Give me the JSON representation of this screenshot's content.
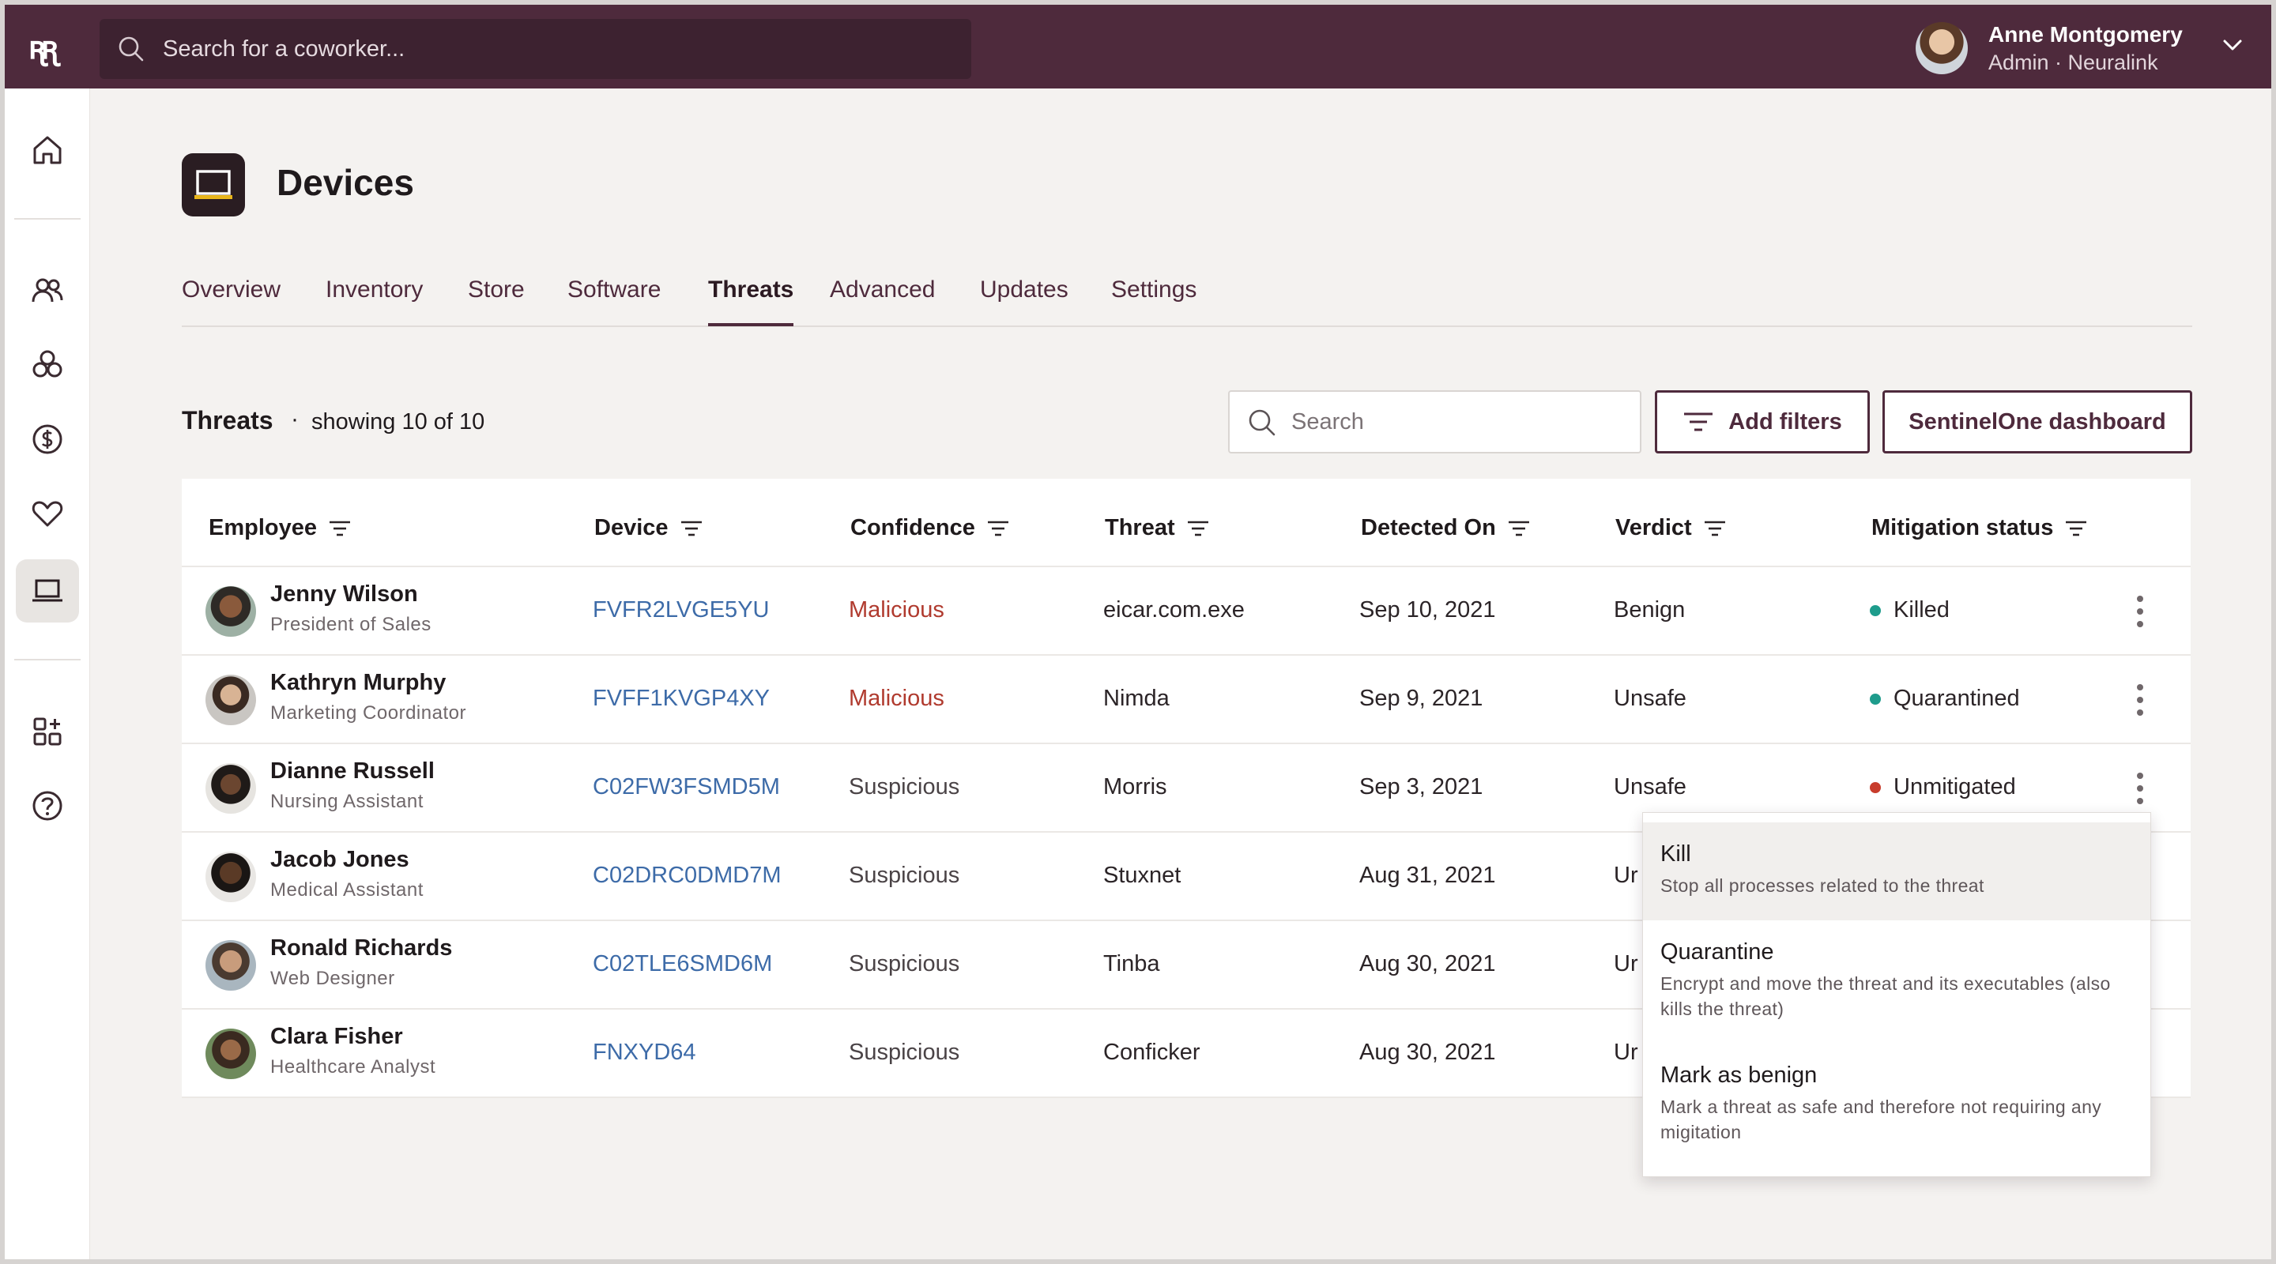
{
  "topbar": {
    "logo_text": "ꭆꭆ",
    "search_placeholder": "Search for a coworker...",
    "user": {
      "name": "Anne Montgomery",
      "role": "Admin · Neuralink"
    }
  },
  "sidebar": {
    "items": [
      "home-icon",
      "people-icon",
      "apps-cluster-icon",
      "dollar-icon",
      "heart-icon",
      "laptop-icon",
      "add-apps-icon",
      "help-icon"
    ],
    "active": "laptop-icon"
  },
  "page": {
    "title": "Devices"
  },
  "tabs": [
    {
      "label": "Overview",
      "active": false
    },
    {
      "label": "Inventory",
      "active": false
    },
    {
      "label": "Store",
      "active": false
    },
    {
      "label": "Software",
      "active": false
    },
    {
      "label": "Threats",
      "active": true
    },
    {
      "label": "Advanced",
      "active": false
    },
    {
      "label": "Updates",
      "active": false
    },
    {
      "label": "Settings",
      "active": false
    }
  ],
  "section": {
    "title": "Threats",
    "separator": "·",
    "count_text": "showing 10 of 10",
    "search_placeholder": "Search",
    "add_filters_label": "Add filters",
    "dashboard_label": "SentinelOne dashboard"
  },
  "table": {
    "columns": [
      "Employee",
      "Device",
      "Confidence",
      "Threat",
      "Detected On",
      "Verdict",
      "Mitigation status"
    ],
    "rows": [
      {
        "name": "Jenny Wilson",
        "role": "President of Sales",
        "device": "FVFR2LVGE5YU",
        "confidence": "Malicious",
        "threat": "eicar.com.exe",
        "detected": "Sep 10, 2021",
        "verdict": "Benign",
        "status": "Killed",
        "status_color": "#1e9c8c"
      },
      {
        "name": "Kathryn Murphy",
        "role": "Marketing Coordinator",
        "device": "FVFF1KVGP4XY",
        "confidence": "Malicious",
        "threat": "Nimda",
        "detected": "Sep 9, 2021",
        "verdict": "Unsafe",
        "status": "Quarantined",
        "status_color": "#1e9c8c"
      },
      {
        "name": "Dianne Russell",
        "role": "Nursing Assistant",
        "device": "C02FW3FSMD5M",
        "confidence": "Suspicious",
        "threat": "Morris",
        "detected": "Sep 3, 2021",
        "verdict": "Unsafe",
        "status": "Unmitigated",
        "status_color": "#c83c2c"
      },
      {
        "name": "Jacob Jones",
        "role": "Medical Assistant",
        "device": "C02DRC0DMD7M",
        "confidence": "Suspicious",
        "threat": "Stuxnet",
        "detected": "Aug 31, 2021",
        "verdict": "Ur",
        "status": "",
        "status_color": ""
      },
      {
        "name": "Ronald Richards",
        "role": "Web Designer",
        "device": "C02TLE6SMD6M",
        "confidence": "Suspicious",
        "threat": "Tinba",
        "detected": "Aug 30, 2021",
        "verdict": "Ur",
        "status": "",
        "status_color": ""
      },
      {
        "name": "Clara Fisher",
        "role": "Healthcare Analyst",
        "device": "FNXYD64",
        "confidence": "Suspicious",
        "threat": "Conficker",
        "detected": "Aug 30, 2021",
        "verdict": "Ur",
        "status": "",
        "status_color": ""
      }
    ]
  },
  "menu": {
    "items": [
      {
        "title": "Kill",
        "desc": "Stop all processes related to the threat"
      },
      {
        "title": "Quarantine",
        "desc": "Encrypt and move the threat and its executables (also kills the threat)"
      },
      {
        "title": "Mark as benign",
        "desc": "Mark a threat as safe and therefore not requiring any migitation"
      }
    ]
  },
  "colors": {
    "brand": "#4e2a3c",
    "link": "#3d6ba8",
    "malicious": "#b03a2e",
    "ok_status": "#1e9c8c",
    "bad_status": "#c83c2c"
  }
}
